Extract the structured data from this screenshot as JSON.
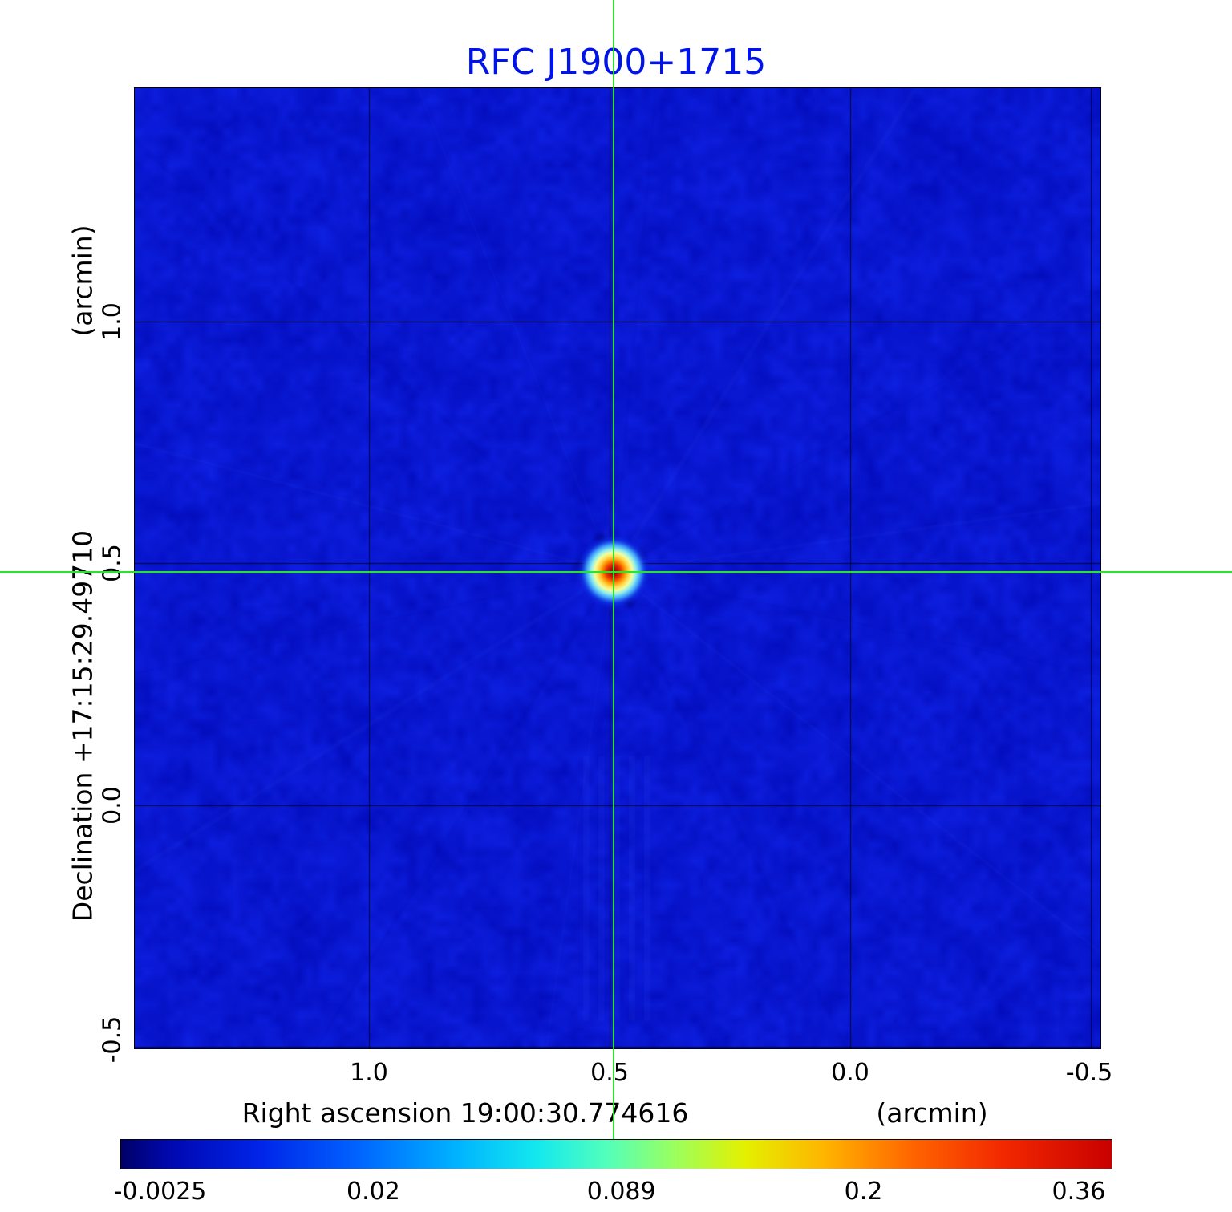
{
  "chart_data": {
    "type": "heatmap",
    "title": "RFC J1900+1715",
    "title_color": "#0014e8",
    "xlabel": "Right ascension  19:00:30.774616",
    "xunit": "(arcmin)",
    "ylabel": "Declination  +17:15:29.49710",
    "yunit": "(arcmin)",
    "x_tick_labels": [
      "1.0",
      "0.5",
      "0.0",
      "-0.5"
    ],
    "x_tick_values": [
      1.0,
      0.5,
      0.0,
      -0.5
    ],
    "y_tick_labels": [
      "1.0",
      "0.5",
      "0.0",
      "-0.5"
    ],
    "y_tick_values": [
      1.0,
      0.5,
      0.0,
      -0.5
    ],
    "x_range_arcmin": [
      1.487,
      -0.52
    ],
    "y_range_arcmin": [
      1.483,
      -0.503
    ],
    "grid": true,
    "background_color": "#0a18d0",
    "crosshair_color": "#2ae32a",
    "source": {
      "x_arcmin": 0.492,
      "y_arcmin": 0.483,
      "peak": 0.36
    },
    "colorbar": {
      "labels": [
        {
          "text": "-0.0025",
          "pos": 0.04
        },
        {
          "text": "0.02",
          "pos": 0.255
        },
        {
          "text": "0.089",
          "pos": 0.505
        },
        {
          "text": "0.2",
          "pos": 0.749
        },
        {
          "text": "0.36",
          "pos": 0.966
        }
      ],
      "gradient_stops": [
        {
          "pos": 0.0,
          "color": "#000068"
        },
        {
          "pos": 0.05,
          "color": "#0008b0"
        },
        {
          "pos": 0.14,
          "color": "#0024e8"
        },
        {
          "pos": 0.24,
          "color": "#0064ff"
        },
        {
          "pos": 0.34,
          "color": "#00b4ff"
        },
        {
          "pos": 0.42,
          "color": "#14e8ee"
        },
        {
          "pos": 0.49,
          "color": "#52ffbc"
        },
        {
          "pos": 0.56,
          "color": "#9cff5c"
        },
        {
          "pos": 0.63,
          "color": "#e4f000"
        },
        {
          "pos": 0.71,
          "color": "#ffb400"
        },
        {
          "pos": 0.8,
          "color": "#ff6400"
        },
        {
          "pos": 0.89,
          "color": "#f22800"
        },
        {
          "pos": 1.0,
          "color": "#c80000"
        }
      ]
    }
  }
}
